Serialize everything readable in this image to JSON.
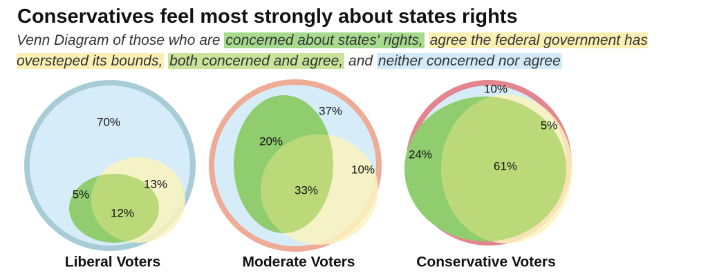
{
  "chart_data": {
    "type": "venn",
    "title": "Conservatives feel most strongly about states rights",
    "subtitle": [
      {
        "text": "Venn Diagram of those who are"
      },
      {
        "text": "concerned about states' rights,",
        "color": "#a6db8e"
      },
      {
        "text": "agree the federal government has oversteped its bounds,",
        "color": "#fbf0b3"
      },
      {
        "text": "both concerned and agree,",
        "color": "#c9e39a"
      },
      {
        "text": "and"
      },
      {
        "text": "neither concerned nor agree",
        "color": "#d3ebf8"
      }
    ],
    "colors": [
      "#8fcd6e",
      "#fbf3bf",
      "#bcd97a",
      "#d6ecf8"
    ],
    "panels": [
      {
        "name": "Liberal Voters",
        "ring": "#a8ccd6",
        "values": [
          5,
          13,
          12,
          70
        ],
        "value_labels": [
          "5%",
          "13%",
          "12%",
          "70%"
        ]
      },
      {
        "name": "Moderate Voters",
        "ring": "#eeac97",
        "values": [
          20,
          10,
          33,
          37
        ],
        "value_labels": [
          "20%",
          "10%",
          "33%",
          "37%"
        ]
      },
      {
        "name": "Conservative Voters",
        "ring": "#e3858e",
        "values": [
          24,
          5,
          61,
          10
        ],
        "value_labels": [
          "24%",
          "5%",
          "61%",
          "10%"
        ]
      }
    ]
  }
}
